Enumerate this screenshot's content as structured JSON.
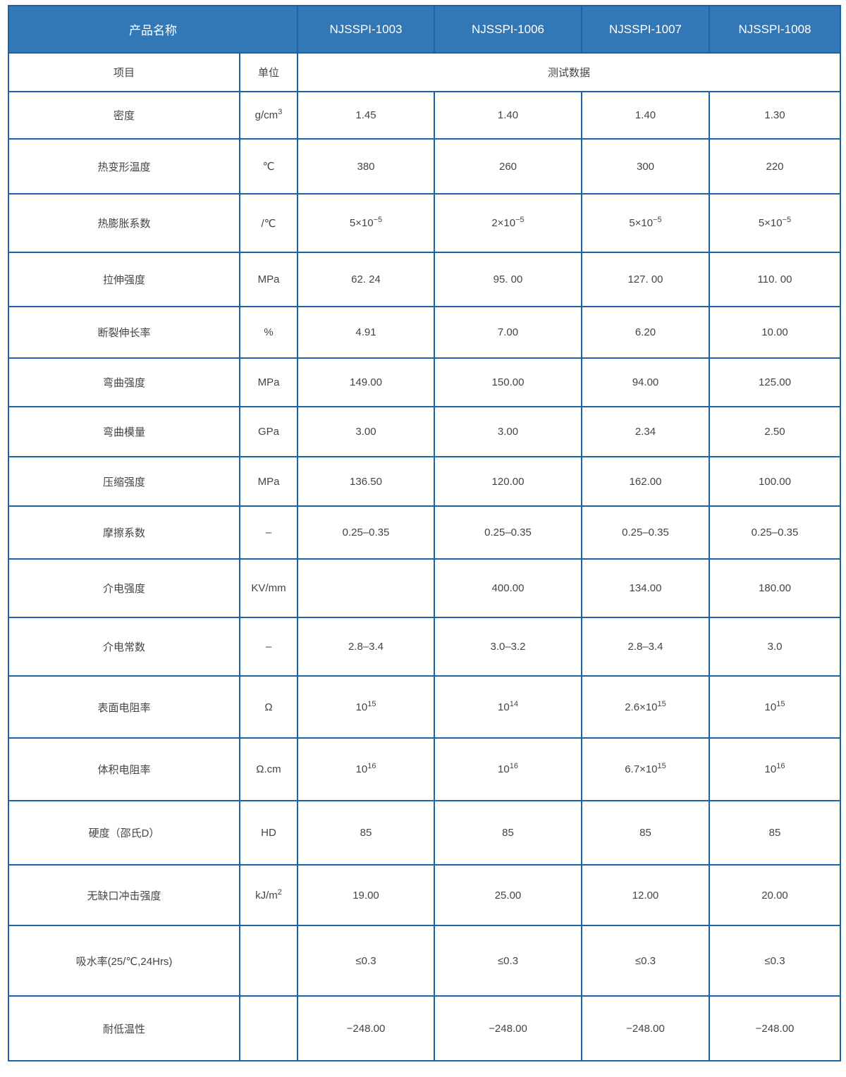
{
  "header": {
    "product_name_label": "产品名称",
    "products": [
      "NJSSPI-1003",
      "NJSSPI-1006",
      "NJSSPI-1007",
      "NJSSPI-1008"
    ]
  },
  "subheader": {
    "item_label": "项目",
    "unit_label": "单位",
    "data_label": "测试数据"
  },
  "colors": {
    "header_bg": "#3378b6",
    "border": "#1b62a6",
    "text": "#444444"
  },
  "rows": [
    {
      "item": "密度",
      "unit": {
        "text": "g/cm",
        "sup": "3"
      },
      "values": [
        "1.45",
        "1.40",
        "1.40",
        "1.30"
      ]
    },
    {
      "item": "热变形温度",
      "unit": "℃",
      "values": [
        "380",
        "260",
        "300",
        "220"
      ]
    },
    {
      "item": "热膨胀系数",
      "unit": "/℃",
      "values": [
        {
          "text": "5×10",
          "sup": "−5"
        },
        {
          "text": "2×10",
          "sup": "−5"
        },
        {
          "text": "5×10",
          "sup": "−5"
        },
        {
          "text": "5×10",
          "sup": "−5"
        }
      ]
    },
    {
      "item": "拉伸强度",
      "unit": "MPa",
      "values": [
        "62. 24",
        "95. 00",
        "127. 00",
        "110. 00"
      ]
    },
    {
      "item": "断裂伸长率",
      "unit": "%",
      "values": [
        "4.91",
        "7.00",
        "6.20",
        "10.00"
      ]
    },
    {
      "item": "弯曲强度",
      "unit": "MPa",
      "values": [
        "149.00",
        "150.00",
        "94.00",
        "125.00"
      ]
    },
    {
      "item": "弯曲模量",
      "unit": "GPa",
      "values": [
        "3.00",
        "3.00",
        "2.34",
        "2.50"
      ]
    },
    {
      "item": "压缩强度",
      "unit": "MPa",
      "values": [
        "136.50",
        "120.00",
        "162.00",
        "100.00"
      ]
    },
    {
      "item": "摩擦系数",
      "unit": "–",
      "values": [
        "0.25–0.35",
        "0.25–0.35",
        "0.25–0.35",
        "0.25–0.35"
      ]
    },
    {
      "item": "介电强度",
      "unit": "KV/mm",
      "values": [
        "",
        "400.00",
        "134.00",
        "180.00"
      ]
    },
    {
      "item": "介电常数",
      "unit": "–",
      "values": [
        "2.8–3.4",
        "3.0–3.2",
        "2.8–3.4",
        "3.0"
      ]
    },
    {
      "item": "表面电阻率",
      "unit": "Ω",
      "values": [
        {
          "text": "10",
          "sup": "15"
        },
        {
          "text": "10",
          "sup": "14"
        },
        {
          "text": "2.6×10",
          "sup": "15"
        },
        {
          "text": "10",
          "sup": "15"
        }
      ]
    },
    {
      "item": "体积电阻率",
      "unit": "Ω.cm",
      "values": [
        {
          "text": "10",
          "sup": "16"
        },
        {
          "text": "10",
          "sup": "16"
        },
        {
          "text": "6.7×10",
          "sup": "15"
        },
        {
          "text": "10",
          "sup": "16"
        }
      ]
    },
    {
      "item": "硬度（邵氏D）",
      "unit": "HD",
      "values": [
        "85",
        "85",
        "85",
        "85"
      ]
    },
    {
      "item": "无缺口冲击强度",
      "unit": {
        "text": "kJ/m",
        "sup": "2"
      },
      "values": [
        "19.00",
        "25.00",
        "12.00",
        "20.00"
      ]
    },
    {
      "item": "吸水率(25/℃,24Hrs)",
      "unit": "",
      "values": [
        "≤0.3",
        "≤0.3",
        "≤0.3",
        "≤0.3"
      ]
    },
    {
      "item": "耐低温性",
      "unit": "",
      "values": [
        "−248.00",
        "−248.00",
        "−248.00",
        "−248.00"
      ]
    }
  ]
}
